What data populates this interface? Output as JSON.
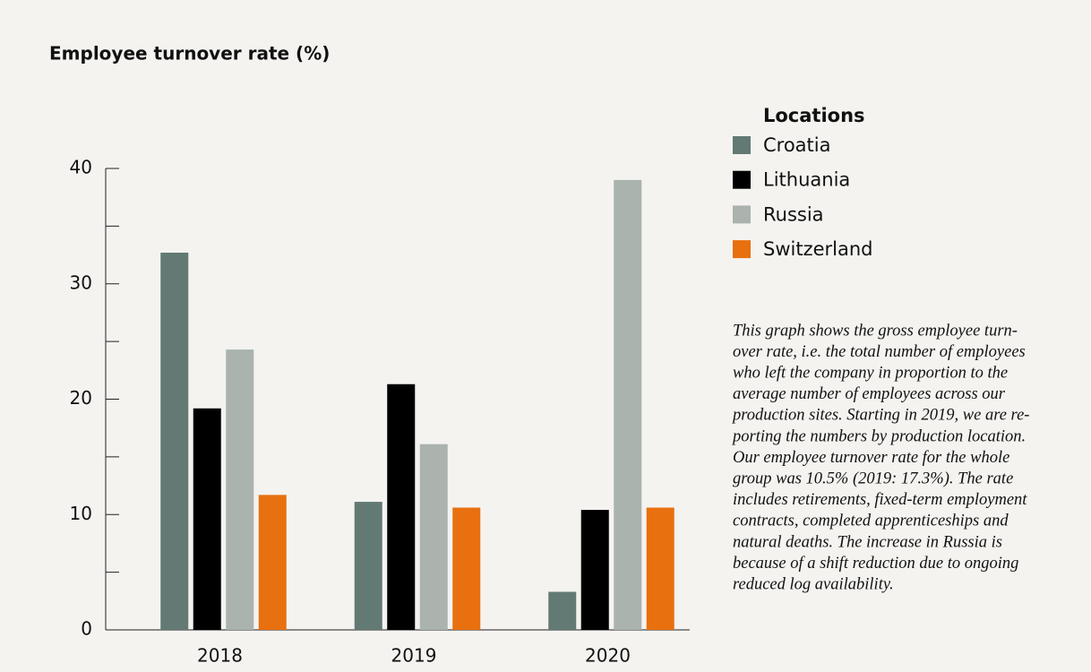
{
  "chart_data": {
    "type": "bar",
    "title": "Employee turnover rate (%)",
    "categories": [
      "2018",
      "2019",
      "2020"
    ],
    "series": [
      {
        "name": "Croatia",
        "color": "#627a73",
        "values": [
          32.7,
          11.1,
          3.3
        ]
      },
      {
        "name": "Lithuania",
        "color": "#000000",
        "values": [
          19.2,
          21.3,
          10.4
        ]
      },
      {
        "name": "Russia",
        "color": "#aab3ae",
        "values": [
          24.3,
          16.1,
          39.0
        ]
      },
      {
        "name": "Switzerland",
        "color": "#e8700f",
        "values": [
          11.7,
          10.6,
          10.6
        ]
      }
    ],
    "ylim": [
      0,
      40
    ],
    "yticks": [
      0,
      10,
      20,
      30,
      40
    ],
    "minor_yticks": [
      5,
      15,
      25,
      35
    ],
    "legend_title": "Locations",
    "legend": "right",
    "note_lines": [
      "This graph shows the gross employee turn-",
      "over rate, i.e. the total number of employees",
      "who left the company in proportion to the",
      "average number of employees across our",
      "production sites. Starting in 2019, we are re-",
      "porting the numbers by production location.",
      "Our employee turnover rate for the whole",
      "group was 10.5% (2019: 17.3%). The rate",
      "includes retirements, fixed-term employment",
      "contracts, completed apprenticeships and",
      "natural deaths. The increase in Russia is",
      "because of a shift reduction due to ongoing",
      "reduced log availability."
    ]
  }
}
